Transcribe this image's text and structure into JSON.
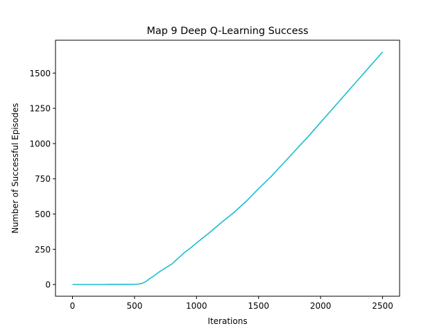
{
  "chart_data": {
    "type": "line",
    "title": "Map 9 Deep Q-Learning Success",
    "xlabel": "Iterations",
    "ylabel": "Number of Successful Episodes",
    "xlim": [
      -137,
      2637
    ],
    "ylim": [
      -83,
      1733
    ],
    "xticks": [
      0,
      500,
      1000,
      1500,
      2000,
      2500
    ],
    "yticks": [
      0,
      250,
      500,
      750,
      1000,
      1250,
      1500
    ],
    "grid": false,
    "line_color": "#17becf",
    "series": [
      {
        "x": [
          0,
          100,
          200,
          250,
          300,
          400,
          500,
          530,
          560,
          590,
          620,
          650,
          700,
          750,
          800,
          850,
          900,
          950,
          1000,
          1100,
          1200,
          1300,
          1400,
          1500,
          1600,
          1700,
          1800,
          1900,
          2000,
          2100,
          2200,
          2300,
          2400,
          2500
        ],
        "y": [
          0,
          0,
          0,
          0,
          1,
          1,
          2,
          3,
          8,
          20,
          40,
          58,
          90,
          118,
          145,
          185,
          225,
          258,
          295,
          365,
          440,
          510,
          590,
          680,
          765,
          860,
          955,
          1050,
          1150,
          1250,
          1350,
          1450,
          1550,
          1650
        ]
      }
    ]
  }
}
